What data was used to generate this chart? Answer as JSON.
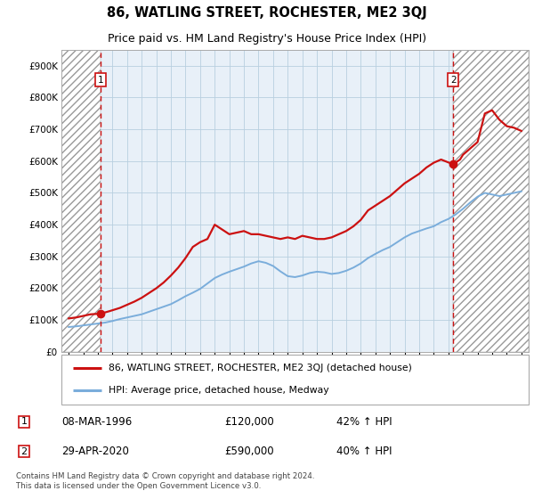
{
  "title": "86, WATLING STREET, ROCHESTER, ME2 3QJ",
  "subtitle": "Price paid vs. HM Land Registry's House Price Index (HPI)",
  "title_fontsize": 10.5,
  "subtitle_fontsize": 9.0,
  "ylim": [
    0,
    950000
  ],
  "yticks": [
    0,
    100000,
    200000,
    300000,
    400000,
    500000,
    600000,
    700000,
    800000,
    900000
  ],
  "ytick_labels": [
    "£0",
    "£100K",
    "£200K",
    "£300K",
    "£400K",
    "£500K",
    "£600K",
    "£700K",
    "£800K",
    "£900K"
  ],
  "xlim_start": 1993.5,
  "xlim_end": 2025.5,
  "sale1_year": 1996.19,
  "sale1_price": 120000,
  "sale1_label": "08-MAR-1996",
  "sale1_amount": "£120,000",
  "sale1_hpi": "42% ↑ HPI",
  "sale2_year": 2020.33,
  "sale2_price": 590000,
  "sale2_label": "29-APR-2020",
  "sale2_amount": "£590,000",
  "sale2_hpi": "40% ↑ HPI",
  "red_line_color": "#cc1111",
  "blue_line_color": "#7aaddb",
  "grid_color": "#b8cfe0",
  "plot_bg_color": "#e8f0f8",
  "vline_color": "#cc1111",
  "marker_color": "#cc1111",
  "legend_line1": "86, WATLING STREET, ROCHESTER, ME2 3QJ (detached house)",
  "legend_line2": "HPI: Average price, detached house, Medway",
  "footer": "Contains HM Land Registry data © Crown copyright and database right 2024.\nThis data is licensed under the Open Government Licence v3.0.",
  "hpi_years": [
    1994.0,
    1994.5,
    1995.0,
    1995.5,
    1996.0,
    1996.5,
    1997.0,
    1997.5,
    1998.0,
    1998.5,
    1999.0,
    1999.5,
    2000.0,
    2000.5,
    2001.0,
    2001.5,
    2002.0,
    2002.5,
    2003.0,
    2003.5,
    2004.0,
    2004.5,
    2005.0,
    2005.5,
    2006.0,
    2006.5,
    2007.0,
    2007.5,
    2008.0,
    2008.5,
    2009.0,
    2009.5,
    2010.0,
    2010.5,
    2011.0,
    2011.5,
    2012.0,
    2012.5,
    2013.0,
    2013.5,
    2014.0,
    2014.5,
    2015.0,
    2015.5,
    2016.0,
    2016.5,
    2017.0,
    2017.5,
    2018.0,
    2018.5,
    2019.0,
    2019.5,
    2020.0,
    2020.5,
    2021.0,
    2021.5,
    2022.0,
    2022.5,
    2023.0,
    2023.5,
    2024.0,
    2024.5,
    2025.0
  ],
  "hpi_values": [
    78000,
    80000,
    83000,
    86000,
    89000,
    92000,
    97000,
    103000,
    108000,
    113000,
    118000,
    126000,
    134000,
    142000,
    150000,
    162000,
    175000,
    186000,
    198000,
    215000,
    232000,
    243000,
    252000,
    260000,
    268000,
    278000,
    285000,
    280000,
    270000,
    253000,
    238000,
    235000,
    240000,
    248000,
    252000,
    250000,
    245000,
    248000,
    255000,
    265000,
    278000,
    295000,
    308000,
    320000,
    330000,
    345000,
    360000,
    372000,
    380000,
    388000,
    395000,
    408000,
    418000,
    432000,
    450000,
    470000,
    488000,
    500000,
    495000,
    490000,
    495000,
    500000,
    505000
  ],
  "prop_years": [
    1994.0,
    1994.5,
    1995.0,
    1995.5,
    1996.19,
    1996.8,
    1997.5,
    1998.0,
    1998.5,
    1999.0,
    1999.5,
    2000.0,
    2000.5,
    2001.0,
    2001.5,
    2002.0,
    2002.5,
    2003.0,
    2003.5,
    2004.0,
    2004.5,
    2005.0,
    2005.5,
    2006.0,
    2006.5,
    2007.0,
    2007.5,
    2008.0,
    2008.5,
    2009.0,
    2009.5,
    2010.0,
    2010.5,
    2011.0,
    2011.5,
    2012.0,
    2012.5,
    2013.0,
    2013.5,
    2014.0,
    2014.5,
    2015.0,
    2015.5,
    2016.0,
    2016.5,
    2017.0,
    2017.5,
    2018.0,
    2018.5,
    2019.0,
    2019.5,
    2020.33,
    2020.8,
    2021.0,
    2021.5,
    2022.0,
    2022.5,
    2023.0,
    2023.5,
    2024.0,
    2024.5,
    2025.0
  ],
  "prop_values": [
    105000,
    108000,
    113000,
    118000,
    120000,
    128000,
    138000,
    148000,
    158000,
    170000,
    185000,
    200000,
    218000,
    240000,
    265000,
    295000,
    330000,
    345000,
    355000,
    400000,
    385000,
    370000,
    375000,
    380000,
    370000,
    370000,
    365000,
    360000,
    355000,
    360000,
    355000,
    365000,
    360000,
    355000,
    355000,
    360000,
    370000,
    380000,
    395000,
    415000,
    445000,
    460000,
    475000,
    490000,
    510000,
    530000,
    545000,
    560000,
    580000,
    595000,
    605000,
    590000,
    605000,
    620000,
    640000,
    660000,
    750000,
    760000,
    730000,
    710000,
    705000,
    695000
  ]
}
